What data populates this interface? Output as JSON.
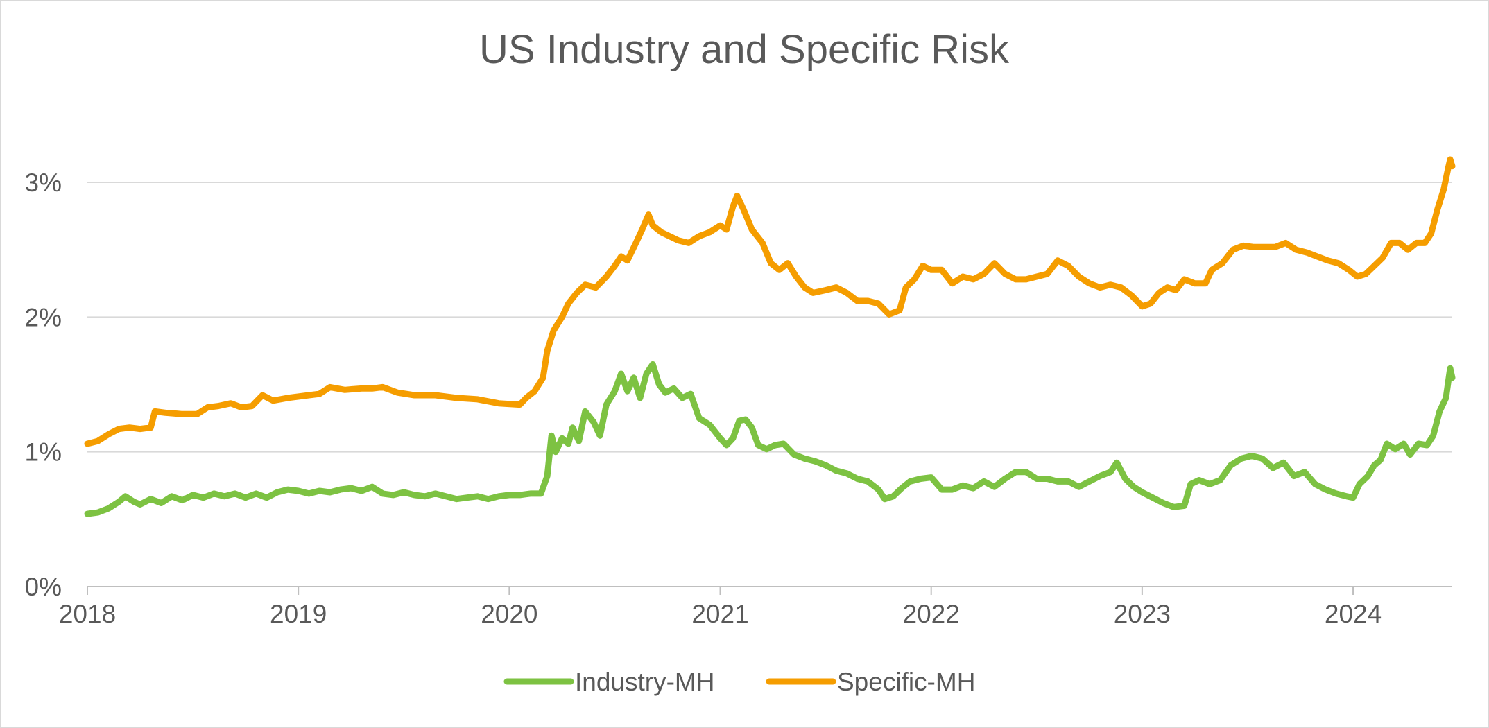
{
  "chart_data": {
    "type": "line",
    "title": "US Industry and Specific Risk",
    "xlabel": "",
    "ylabel": "",
    "x_ticks": [
      "2018",
      "2019",
      "2020",
      "2021",
      "2022",
      "2023",
      "2024"
    ],
    "y_ticks": [
      "0%",
      "1%",
      "2%",
      "3%"
    ],
    "xlim": [
      2018.0,
      2024.47
    ],
    "ylim": [
      0,
      3.0
    ],
    "grid": "horizontal",
    "legend_position": "bottom",
    "series": [
      {
        "name": "Industry-MH",
        "color": "#7dc242",
        "points": [
          [
            2018.0,
            0.54
          ],
          [
            2018.05,
            0.55
          ],
          [
            2018.1,
            0.58
          ],
          [
            2018.15,
            0.63
          ],
          [
            2018.18,
            0.67
          ],
          [
            2018.22,
            0.63
          ],
          [
            2018.25,
            0.61
          ],
          [
            2018.3,
            0.65
          ],
          [
            2018.35,
            0.62
          ],
          [
            2018.4,
            0.67
          ],
          [
            2018.45,
            0.64
          ],
          [
            2018.5,
            0.68
          ],
          [
            2018.55,
            0.66
          ],
          [
            2018.6,
            0.69
          ],
          [
            2018.65,
            0.67
          ],
          [
            2018.7,
            0.69
          ],
          [
            2018.75,
            0.66
          ],
          [
            2018.8,
            0.69
          ],
          [
            2018.85,
            0.66
          ],
          [
            2018.9,
            0.7
          ],
          [
            2018.95,
            0.72
          ],
          [
            2019.0,
            0.71
          ],
          [
            2019.05,
            0.69
          ],
          [
            2019.1,
            0.71
          ],
          [
            2019.15,
            0.7
          ],
          [
            2019.2,
            0.72
          ],
          [
            2019.25,
            0.73
          ],
          [
            2019.3,
            0.71
          ],
          [
            2019.35,
            0.74
          ],
          [
            2019.4,
            0.69
          ],
          [
            2019.45,
            0.68
          ],
          [
            2019.5,
            0.7
          ],
          [
            2019.55,
            0.68
          ],
          [
            2019.6,
            0.67
          ],
          [
            2019.65,
            0.69
          ],
          [
            2019.7,
            0.67
          ],
          [
            2019.75,
            0.65
          ],
          [
            2019.8,
            0.66
          ],
          [
            2019.85,
            0.67
          ],
          [
            2019.9,
            0.65
          ],
          [
            2019.95,
            0.67
          ],
          [
            2020.0,
            0.68
          ],
          [
            2020.05,
            0.68
          ],
          [
            2020.1,
            0.69
          ],
          [
            2020.15,
            0.69
          ],
          [
            2020.18,
            0.82
          ],
          [
            2020.2,
            1.12
          ],
          [
            2020.22,
            1.0
          ],
          [
            2020.25,
            1.1
          ],
          [
            2020.28,
            1.06
          ],
          [
            2020.3,
            1.18
          ],
          [
            2020.33,
            1.08
          ],
          [
            2020.36,
            1.3
          ],
          [
            2020.4,
            1.22
          ],
          [
            2020.43,
            1.12
          ],
          [
            2020.46,
            1.35
          ],
          [
            2020.5,
            1.45
          ],
          [
            2020.53,
            1.58
          ],
          [
            2020.56,
            1.45
          ],
          [
            2020.59,
            1.55
          ],
          [
            2020.62,
            1.4
          ],
          [
            2020.65,
            1.58
          ],
          [
            2020.68,
            1.65
          ],
          [
            2020.71,
            1.5
          ],
          [
            2020.74,
            1.44
          ],
          [
            2020.78,
            1.47
          ],
          [
            2020.82,
            1.4
          ],
          [
            2020.86,
            1.43
          ],
          [
            2020.9,
            1.25
          ],
          [
            2020.95,
            1.2
          ],
          [
            2021.0,
            1.1
          ],
          [
            2021.03,
            1.05
          ],
          [
            2021.06,
            1.1
          ],
          [
            2021.09,
            1.23
          ],
          [
            2021.12,
            1.24
          ],
          [
            2021.15,
            1.18
          ],
          [
            2021.18,
            1.05
          ],
          [
            2021.22,
            1.02
          ],
          [
            2021.26,
            1.05
          ],
          [
            2021.3,
            1.06
          ],
          [
            2021.35,
            0.98
          ],
          [
            2021.4,
            0.95
          ],
          [
            2021.45,
            0.93
          ],
          [
            2021.5,
            0.9
          ],
          [
            2021.55,
            0.86
          ],
          [
            2021.6,
            0.84
          ],
          [
            2021.65,
            0.8
          ],
          [
            2021.7,
            0.78
          ],
          [
            2021.75,
            0.72
          ],
          [
            2021.78,
            0.65
          ],
          [
            2021.82,
            0.67
          ],
          [
            2021.86,
            0.73
          ],
          [
            2021.9,
            0.78
          ],
          [
            2021.95,
            0.8
          ],
          [
            2022.0,
            0.81
          ],
          [
            2022.05,
            0.72
          ],
          [
            2022.1,
            0.72
          ],
          [
            2022.15,
            0.75
          ],
          [
            2022.2,
            0.73
          ],
          [
            2022.25,
            0.78
          ],
          [
            2022.3,
            0.74
          ],
          [
            2022.35,
            0.8
          ],
          [
            2022.4,
            0.85
          ],
          [
            2022.45,
            0.85
          ],
          [
            2022.5,
            0.8
          ],
          [
            2022.55,
            0.8
          ],
          [
            2022.6,
            0.78
          ],
          [
            2022.65,
            0.78
          ],
          [
            2022.7,
            0.74
          ],
          [
            2022.75,
            0.78
          ],
          [
            2022.8,
            0.82
          ],
          [
            2022.85,
            0.85
          ],
          [
            2022.88,
            0.92
          ],
          [
            2022.92,
            0.8
          ],
          [
            2022.96,
            0.74
          ],
          [
            2023.0,
            0.7
          ],
          [
            2023.05,
            0.66
          ],
          [
            2023.1,
            0.62
          ],
          [
            2023.15,
            0.59
          ],
          [
            2023.2,
            0.6
          ],
          [
            2023.23,
            0.76
          ],
          [
            2023.27,
            0.79
          ],
          [
            2023.32,
            0.76
          ],
          [
            2023.37,
            0.79
          ],
          [
            2023.42,
            0.9
          ],
          [
            2023.47,
            0.95
          ],
          [
            2023.52,
            0.97
          ],
          [
            2023.57,
            0.95
          ],
          [
            2023.62,
            0.88
          ],
          [
            2023.67,
            0.92
          ],
          [
            2023.72,
            0.82
          ],
          [
            2023.77,
            0.85
          ],
          [
            2023.82,
            0.76
          ],
          [
            2023.87,
            0.72
          ],
          [
            2023.92,
            0.69
          ],
          [
            2023.97,
            0.67
          ],
          [
            2024.0,
            0.66
          ],
          [
            2024.03,
            0.76
          ],
          [
            2024.07,
            0.82
          ],
          [
            2024.1,
            0.9
          ],
          [
            2024.13,
            0.94
          ],
          [
            2024.16,
            1.06
          ],
          [
            2024.2,
            1.02
          ],
          [
            2024.24,
            1.06
          ],
          [
            2024.27,
            0.98
          ],
          [
            2024.31,
            1.06
          ],
          [
            2024.35,
            1.05
          ],
          [
            2024.38,
            1.12
          ],
          [
            2024.41,
            1.3
          ],
          [
            2024.44,
            1.4
          ],
          [
            2024.46,
            1.62
          ],
          [
            2024.47,
            1.55
          ]
        ]
      },
      {
        "name": "Specific-MH",
        "color": "#f59d00",
        "points": [
          [
            2018.0,
            1.06
          ],
          [
            2018.05,
            1.08
          ],
          [
            2018.1,
            1.13
          ],
          [
            2018.15,
            1.17
          ],
          [
            2018.2,
            1.18
          ],
          [
            2018.25,
            1.17
          ],
          [
            2018.3,
            1.18
          ],
          [
            2018.32,
            1.3
          ],
          [
            2018.37,
            1.29
          ],
          [
            2018.45,
            1.28
          ],
          [
            2018.52,
            1.28
          ],
          [
            2018.57,
            1.33
          ],
          [
            2018.62,
            1.34
          ],
          [
            2018.68,
            1.36
          ],
          [
            2018.73,
            1.33
          ],
          [
            2018.78,
            1.34
          ],
          [
            2018.83,
            1.42
          ],
          [
            2018.88,
            1.38
          ],
          [
            2018.95,
            1.4
          ],
          [
            2019.05,
            1.42
          ],
          [
            2019.1,
            1.43
          ],
          [
            2019.15,
            1.48
          ],
          [
            2019.22,
            1.46
          ],
          [
            2019.3,
            1.47
          ],
          [
            2019.35,
            1.47
          ],
          [
            2019.4,
            1.48
          ],
          [
            2019.47,
            1.44
          ],
          [
            2019.55,
            1.42
          ],
          [
            2019.65,
            1.42
          ],
          [
            2019.75,
            1.4
          ],
          [
            2019.85,
            1.39
          ],
          [
            2019.95,
            1.36
          ],
          [
            2020.05,
            1.35
          ],
          [
            2020.08,
            1.4
          ],
          [
            2020.12,
            1.45
          ],
          [
            2020.16,
            1.55
          ],
          [
            2020.18,
            1.75
          ],
          [
            2020.21,
            1.9
          ],
          [
            2020.25,
            2.0
          ],
          [
            2020.28,
            2.1
          ],
          [
            2020.32,
            2.18
          ],
          [
            2020.36,
            2.24
          ],
          [
            2020.41,
            2.22
          ],
          [
            2020.46,
            2.3
          ],
          [
            2020.5,
            2.38
          ],
          [
            2020.53,
            2.45
          ],
          [
            2020.56,
            2.42
          ],
          [
            2020.6,
            2.55
          ],
          [
            2020.63,
            2.65
          ],
          [
            2020.66,
            2.76
          ],
          [
            2020.68,
            2.68
          ],
          [
            2020.72,
            2.63
          ],
          [
            2020.76,
            2.6
          ],
          [
            2020.8,
            2.57
          ],
          [
            2020.85,
            2.55
          ],
          [
            2020.9,
            2.6
          ],
          [
            2020.95,
            2.63
          ],
          [
            2021.0,
            2.68
          ],
          [
            2021.03,
            2.65
          ],
          [
            2021.06,
            2.82
          ],
          [
            2021.08,
            2.9
          ],
          [
            2021.11,
            2.8
          ],
          [
            2021.15,
            2.65
          ],
          [
            2021.2,
            2.55
          ],
          [
            2021.24,
            2.4
          ],
          [
            2021.28,
            2.35
          ],
          [
            2021.32,
            2.4
          ],
          [
            2021.36,
            2.3
          ],
          [
            2021.4,
            2.22
          ],
          [
            2021.44,
            2.18
          ],
          [
            2021.5,
            2.2
          ],
          [
            2021.55,
            2.22
          ],
          [
            2021.6,
            2.18
          ],
          [
            2021.65,
            2.12
          ],
          [
            2021.7,
            2.12
          ],
          [
            2021.75,
            2.1
          ],
          [
            2021.8,
            2.02
          ],
          [
            2021.85,
            2.05
          ],
          [
            2021.88,
            2.22
          ],
          [
            2021.92,
            2.28
          ],
          [
            2021.96,
            2.38
          ],
          [
            2022.0,
            2.35
          ],
          [
            2022.05,
            2.35
          ],
          [
            2022.1,
            2.25
          ],
          [
            2022.15,
            2.3
          ],
          [
            2022.2,
            2.28
          ],
          [
            2022.25,
            2.32
          ],
          [
            2022.3,
            2.4
          ],
          [
            2022.35,
            2.32
          ],
          [
            2022.4,
            2.28
          ],
          [
            2022.45,
            2.28
          ],
          [
            2022.5,
            2.3
          ],
          [
            2022.55,
            2.32
          ],
          [
            2022.6,
            2.42
          ],
          [
            2022.65,
            2.38
          ],
          [
            2022.7,
            2.3
          ],
          [
            2022.75,
            2.25
          ],
          [
            2022.8,
            2.22
          ],
          [
            2022.85,
            2.24
          ],
          [
            2022.9,
            2.22
          ],
          [
            2022.95,
            2.16
          ],
          [
            2023.0,
            2.08
          ],
          [
            2023.04,
            2.1
          ],
          [
            2023.08,
            2.18
          ],
          [
            2023.12,
            2.22
          ],
          [
            2023.16,
            2.2
          ],
          [
            2023.2,
            2.28
          ],
          [
            2023.25,
            2.25
          ],
          [
            2023.3,
            2.25
          ],
          [
            2023.33,
            2.35
          ],
          [
            2023.38,
            2.4
          ],
          [
            2023.43,
            2.5
          ],
          [
            2023.48,
            2.53
          ],
          [
            2023.53,
            2.52
          ],
          [
            2023.58,
            2.52
          ],
          [
            2023.63,
            2.52
          ],
          [
            2023.68,
            2.55
          ],
          [
            2023.73,
            2.5
          ],
          [
            2023.78,
            2.48
          ],
          [
            2023.83,
            2.45
          ],
          [
            2023.88,
            2.42
          ],
          [
            2023.93,
            2.4
          ],
          [
            2023.98,
            2.35
          ],
          [
            2024.02,
            2.3
          ],
          [
            2024.06,
            2.32
          ],
          [
            2024.1,
            2.38
          ],
          [
            2024.14,
            2.44
          ],
          [
            2024.18,
            2.55
          ],
          [
            2024.22,
            2.55
          ],
          [
            2024.26,
            2.5
          ],
          [
            2024.3,
            2.55
          ],
          [
            2024.34,
            2.55
          ],
          [
            2024.37,
            2.62
          ],
          [
            2024.4,
            2.8
          ],
          [
            2024.43,
            2.95
          ],
          [
            2024.45,
            3.1
          ],
          [
            2024.46,
            3.17
          ],
          [
            2024.47,
            3.12
          ]
        ]
      }
    ]
  }
}
